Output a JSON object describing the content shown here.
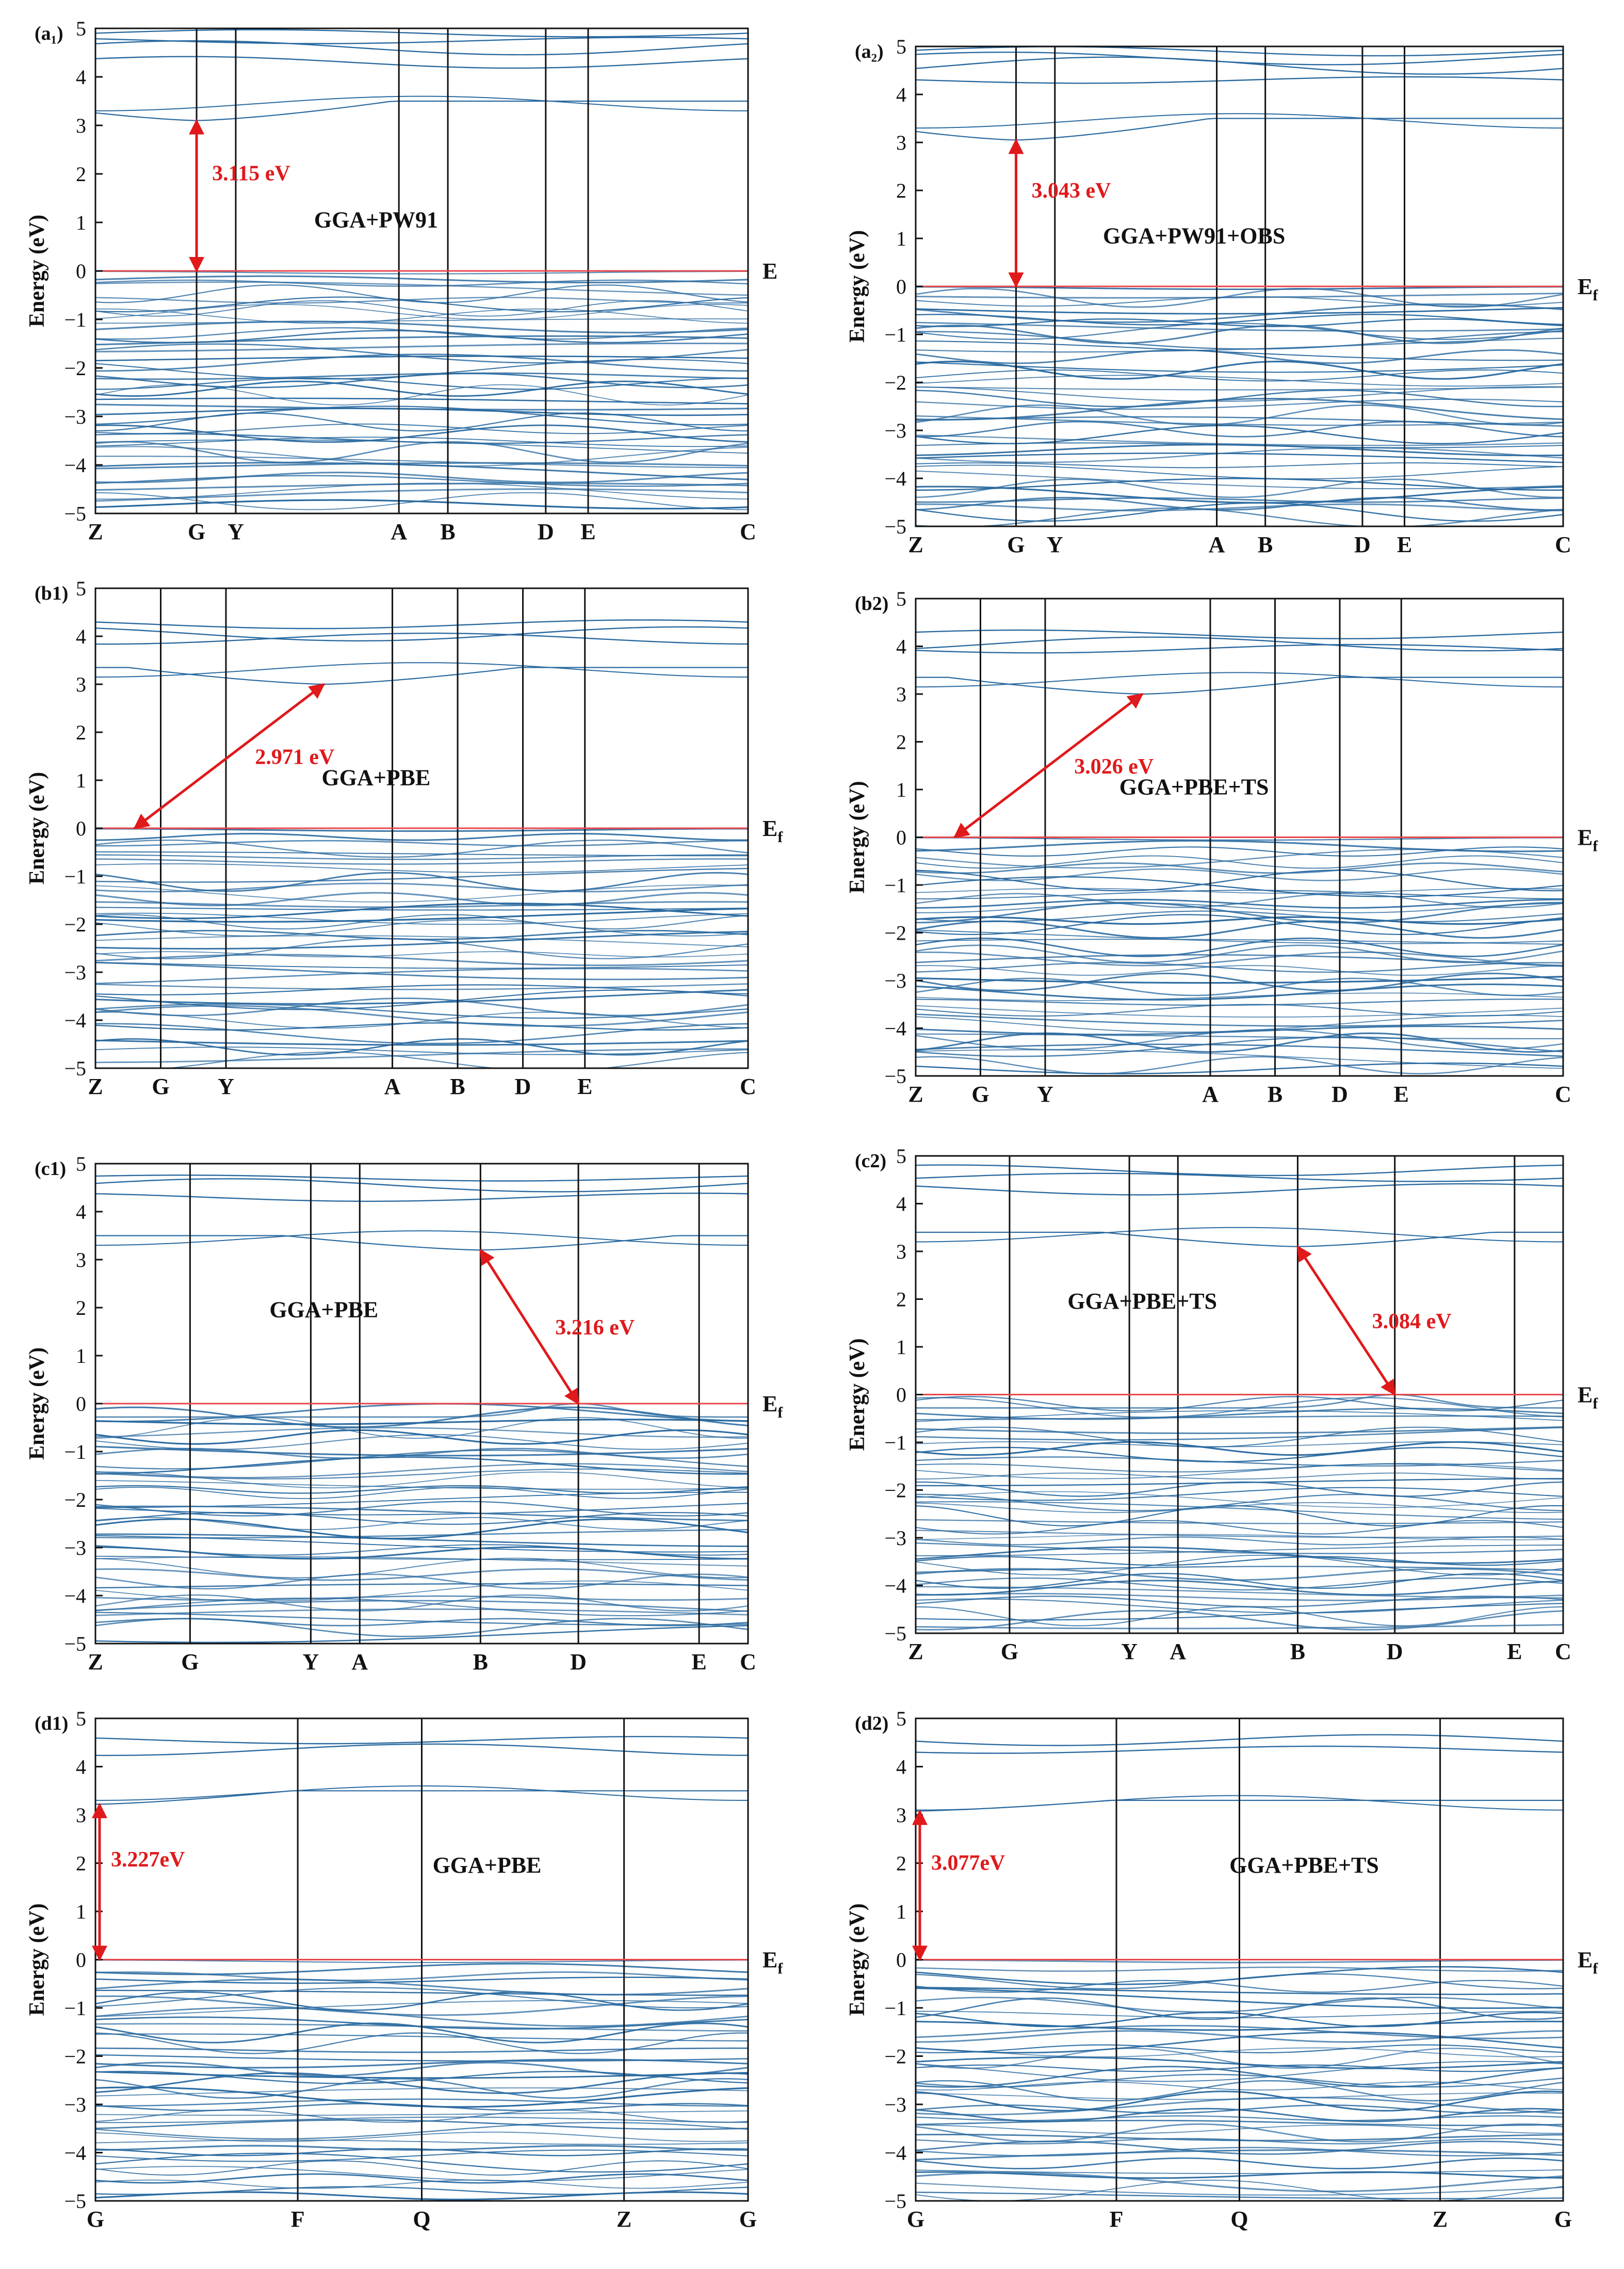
{
  "figure": {
    "ylabel": "Energy (eV)",
    "fermi_line_color": "#e8474c",
    "band_color": "#2a6aa0",
    "annotation_color": "#e0191b"
  },
  "chart_data": [
    {
      "type": "line",
      "panel_label": "(a₁)",
      "method": "GGA+PW91",
      "fermi_label": "E",
      "ylabel": "Energy (eV)",
      "ylim": [
        -5,
        5
      ],
      "yticks": [
        -5,
        -4,
        -3,
        -2,
        -1,
        0,
        1,
        2,
        3,
        4,
        5
      ],
      "kpoints": [
        {
          "label": "Z",
          "pos": 0.0
        },
        {
          "label": "G",
          "pos": 0.155
        },
        {
          "label": "Y",
          "pos": 0.215
        },
        {
          "label": "A",
          "pos": 0.465
        },
        {
          "label": "B",
          "pos": 0.54
        },
        {
          "label": "D",
          "pos": 0.69
        },
        {
          "label": "E",
          "pos": 0.755
        },
        {
          "label": "C",
          "pos": 1.0
        }
      ],
      "gap": {
        "value_label": "3.115 eV",
        "from": {
          "k": 0.155,
          "e": 0.0
        },
        "to": {
          "k": 0.155,
          "e": 3.1
        }
      },
      "cb_min": 3.1,
      "cb_max": 3.5,
      "cb_high": [
        4.3,
        4.6,
        4.75,
        4.9
      ],
      "vb_shape": "flat"
    },
    {
      "type": "line",
      "panel_label": "(a₂)",
      "method": "GGA+PW91+OBS",
      "fermi_label": "E",
      "fermi_sub": "f",
      "ylabel": "Energy (eV)",
      "ylim": [
        -5,
        5
      ],
      "yticks": [
        -5,
        -4,
        -3,
        -2,
        -1,
        0,
        1,
        2,
        3,
        4,
        5
      ],
      "kpoints": [
        {
          "label": "Z",
          "pos": 0.0
        },
        {
          "label": "G",
          "pos": 0.155
        },
        {
          "label": "Y",
          "pos": 0.215
        },
        {
          "label": "A",
          "pos": 0.465
        },
        {
          "label": "B",
          "pos": 0.54
        },
        {
          "label": "D",
          "pos": 0.69
        },
        {
          "label": "E",
          "pos": 0.755
        },
        {
          "label": "C",
          "pos": 1.0
        }
      ],
      "gap": {
        "value_label": "3.043 eV",
        "from": {
          "k": 0.155,
          "e": 0.0
        },
        "to": {
          "k": 0.155,
          "e": 3.05
        }
      },
      "cb_min": 3.05,
      "cb_max": 3.5,
      "cb_high": [
        4.3,
        4.6,
        4.75,
        4.9
      ],
      "vb_shape": "flat"
    },
    {
      "type": "line",
      "panel_label": "(b1)",
      "method": "GGA+PBE",
      "fermi_label": "E",
      "fermi_sub": "f",
      "ylabel": "Energy (eV)",
      "ylim": [
        -5,
        5
      ],
      "yticks": [
        -5,
        -4,
        -3,
        -2,
        -1,
        0,
        1,
        2,
        3,
        4,
        5
      ],
      "kpoints": [
        {
          "label": "Z",
          "pos": 0.0
        },
        {
          "label": "G",
          "pos": 0.1
        },
        {
          "label": "Y",
          "pos": 0.2
        },
        {
          "label": "A",
          "pos": 0.455
        },
        {
          "label": "B",
          "pos": 0.555
        },
        {
          "label": "D",
          "pos": 0.655
        },
        {
          "label": "E",
          "pos": 0.75
        },
        {
          "label": "C",
          "pos": 1.0
        }
      ],
      "gap": {
        "value_label": "2.971 eV",
        "from": {
          "k": 0.06,
          "e": 0.0
        },
        "to": {
          "k": 0.35,
          "e": 3.0
        }
      },
      "cb_min": 3.0,
      "cb_max": 3.35,
      "cb_high": [
        3.95,
        4.05,
        4.25
      ],
      "vb_shape": "flat"
    },
    {
      "type": "line",
      "panel_label": "(b2)",
      "method": "GGA+PBE+TS",
      "fermi_label": "E",
      "fermi_sub": "f",
      "ylabel": "Energy (eV)",
      "ylim": [
        -5,
        5
      ],
      "yticks": [
        -5,
        -4,
        -3,
        -2,
        -1,
        0,
        1,
        2,
        3,
        4,
        5
      ],
      "kpoints": [
        {
          "label": "Z",
          "pos": 0.0
        },
        {
          "label": "G",
          "pos": 0.1
        },
        {
          "label": "Y",
          "pos": 0.2
        },
        {
          "label": "A",
          "pos": 0.455
        },
        {
          "label": "B",
          "pos": 0.555
        },
        {
          "label": "D",
          "pos": 0.655
        },
        {
          "label": "E",
          "pos": 0.75
        },
        {
          "label": "C",
          "pos": 1.0
        }
      ],
      "gap": {
        "value_label": "3.026 eV",
        "from": {
          "k": 0.06,
          "e": 0.0
        },
        "to": {
          "k": 0.35,
          "e": 3.0
        }
      },
      "cb_min": 3.0,
      "cb_max": 3.35,
      "cb_high": [
        3.95,
        4.05,
        4.25
      ],
      "vb_shape": "flat"
    },
    {
      "type": "line",
      "panel_label": "(c1)",
      "method": "GGA+PBE",
      "fermi_label": "E",
      "fermi_sub": "f",
      "ylabel": "Energy (eV)",
      "ylim": [
        -5,
        5
      ],
      "yticks": [
        -5,
        -4,
        -3,
        -2,
        -1,
        0,
        1,
        2,
        3,
        4,
        5
      ],
      "kpoints": [
        {
          "label": "Z",
          "pos": 0.0
        },
        {
          "label": "G",
          "pos": 0.145
        },
        {
          "label": "Y",
          "pos": 0.33
        },
        {
          "label": "A",
          "pos": 0.405
        },
        {
          "label": "B",
          "pos": 0.59
        },
        {
          "label": "D",
          "pos": 0.74
        },
        {
          "label": "E",
          "pos": 0.925
        },
        {
          "label": "C",
          "pos": 1.0
        }
      ],
      "gap": {
        "value_label": "3.216 eV",
        "from": {
          "k": 0.74,
          "e": 0.0
        },
        "to": {
          "k": 0.59,
          "e": 3.2
        }
      },
      "cb_min": 3.2,
      "cb_max": 3.5,
      "cb_high": [
        4.3,
        4.55,
        4.7
      ],
      "vb_shape": "peak_d"
    },
    {
      "type": "line",
      "panel_label": "(c2)",
      "method": "GGA+PBE+TS",
      "fermi_label": "E",
      "fermi_sub": "f",
      "ylabel": "Energy (eV)",
      "ylim": [
        -5,
        5
      ],
      "yticks": [
        -5,
        -4,
        -3,
        -2,
        -1,
        0,
        1,
        2,
        3,
        4,
        5
      ],
      "kpoints": [
        {
          "label": "Z",
          "pos": 0.0
        },
        {
          "label": "G",
          "pos": 0.145
        },
        {
          "label": "Y",
          "pos": 0.33
        },
        {
          "label": "A",
          "pos": 0.405
        },
        {
          "label": "B",
          "pos": 0.59
        },
        {
          "label": "D",
          "pos": 0.74
        },
        {
          "label": "E",
          "pos": 0.925
        },
        {
          "label": "C",
          "pos": 1.0
        }
      ],
      "gap": {
        "value_label": "3.084 eV",
        "from": {
          "k": 0.74,
          "e": 0.0
        },
        "to": {
          "k": 0.59,
          "e": 3.1
        }
      },
      "cb_min": 3.1,
      "cb_max": 3.4,
      "cb_high": [
        4.3,
        4.55,
        4.7
      ],
      "vb_shape": "peak_d"
    },
    {
      "type": "line",
      "panel_label": "(d1)",
      "method": "GGA+PBE",
      "fermi_label": "E",
      "fermi_sub": "f",
      "ylabel": "Energy (eV)",
      "ylim": [
        -5,
        5
      ],
      "yticks": [
        -5,
        -4,
        -3,
        -2,
        -1,
        0,
        1,
        2,
        3,
        4,
        5
      ],
      "kpoints": [
        {
          "label": "G",
          "pos": 0.0
        },
        {
          "label": "F",
          "pos": 0.31
        },
        {
          "label": "Q",
          "pos": 0.5
        },
        {
          "label": "Z",
          "pos": 0.81
        },
        {
          "label": "G",
          "pos": 1.0
        }
      ],
      "gap": {
        "value_label": "3.227eV",
        "from": {
          "k": 0.0,
          "e": 0.0
        },
        "to": {
          "k": 0.0,
          "e": 3.22
        }
      },
      "cb_min": 3.22,
      "cb_max": 3.5,
      "cb_high": [
        4.35,
        4.55
      ],
      "vb_shape": "flat"
    },
    {
      "type": "line",
      "panel_label": "(d2)",
      "method": "GGA+PBE+TS",
      "fermi_label": "E",
      "fermi_sub": "f",
      "ylabel": "Energy (eV)",
      "ylim": [
        -5,
        5
      ],
      "yticks": [
        -5,
        -4,
        -3,
        -2,
        -1,
        0,
        1,
        2,
        3,
        4,
        5
      ],
      "kpoints": [
        {
          "label": "G",
          "pos": 0.0
        },
        {
          "label": "F",
          "pos": 0.31
        },
        {
          "label": "Q",
          "pos": 0.5
        },
        {
          "label": "Z",
          "pos": 0.81
        },
        {
          "label": "G",
          "pos": 1.0
        }
      ],
      "gap": {
        "value_label": "3.077eV",
        "from": {
          "k": 0.0,
          "e": 0.0
        },
        "to": {
          "k": 0.0,
          "e": 3.08
        }
      },
      "cb_min": 3.08,
      "cb_max": 3.3,
      "cb_high": [
        4.35,
        4.55
      ],
      "vb_shape": "flat"
    }
  ]
}
